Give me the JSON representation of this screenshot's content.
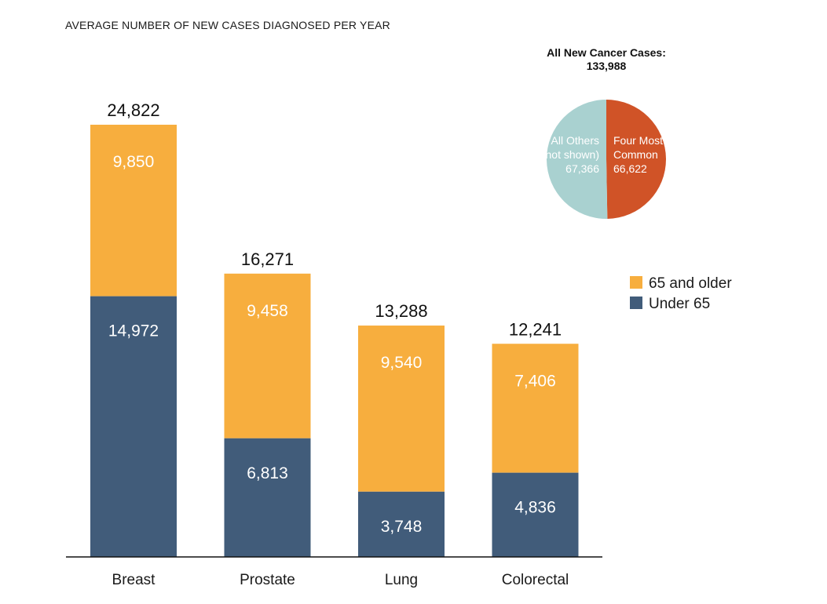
{
  "chart_data": [
    {
      "type": "bar",
      "stacked": true,
      "title": "AVERAGE NUMBER OF NEW CASES DIAGNOSED PER YEAR",
      "categories": [
        "Breast",
        "Prostate",
        "Lung",
        "Colorectal"
      ],
      "series": [
        {
          "name": "Under 65",
          "values": [
            14972,
            6813,
            3748,
            4836
          ],
          "labels": [
            "14,972",
            "6,813",
            "3,748",
            "4,836"
          ],
          "color": "#415c7a"
        },
        {
          "name": "65 and older",
          "values": [
            9850,
            9458,
            9540,
            7406
          ],
          "labels": [
            "9,850",
            "9,458",
            "9,540",
            "7,406"
          ],
          "color": "#f7ae3e"
        }
      ],
      "totals": [
        24822,
        16271,
        13288,
        12241
      ],
      "total_labels": [
        "24,822",
        "16,271",
        "13,288",
        "12,241"
      ],
      "ylim": [
        0,
        24822
      ],
      "legend_position": "right",
      "legend_order": [
        "65 and older",
        "Under 65"
      ],
      "grid": false
    },
    {
      "type": "pie",
      "title_lines": [
        "All New Cancer Cases:",
        "133,988"
      ],
      "slices": [
        {
          "name_lines": [
            "Four Most",
            "Common"
          ],
          "value": 66622,
          "value_label": "66,622",
          "color": "#d05327"
        },
        {
          "name_lines": [
            "All Others",
            "(not shown)"
          ],
          "value": 67366,
          "value_label": "67,366",
          "color": "#a9d1d0"
        }
      ]
    }
  ]
}
